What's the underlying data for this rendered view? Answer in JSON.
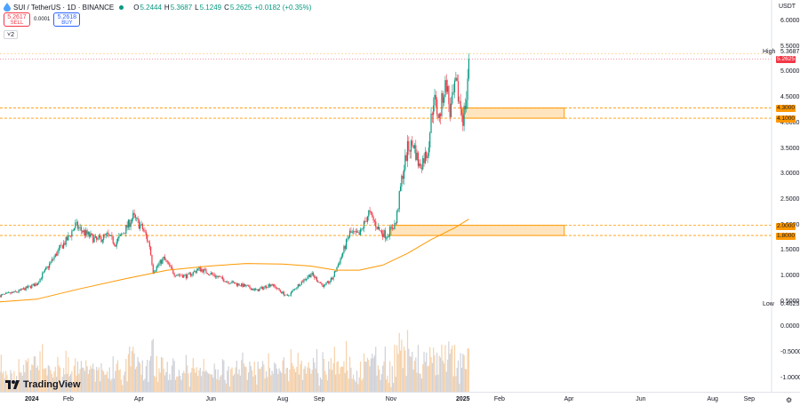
{
  "header": {
    "symbol": "SUI / TetherUS · 1D · BINANCE",
    "o_label": "O",
    "o_value": "5.2444",
    "h_label": "H",
    "h_value": "5.3687",
    "l_label": "L",
    "l_value": "5.1249",
    "c_label": "C",
    "c_value": "5.2625",
    "change": "+0.0182 (+0.35%)"
  },
  "trade": {
    "sell_price": "5.2617",
    "sell_label": "SELL",
    "spread": "0.0001",
    "buy_price": "5.2618",
    "buy_label": "BUY"
  },
  "indicator_count": "2",
  "logo_text": "TradingView",
  "currency": "USDT",
  "colors": {
    "up": "#089981",
    "down": "#f23645",
    "zone": "#ff9800",
    "volume": "#9598a1"
  },
  "chart_data": {
    "type": "candlestick",
    "symbol": "SUI/USDT",
    "interval": "1D",
    "ylim": [
      -1.2,
      6.3
    ],
    "x_range": [
      "2023-12-05",
      "2025-09-20"
    ],
    "y_ticks": [
      "6.0000",
      "5.5000",
      "5.0000",
      "4.5000",
      "4.0000",
      "3.5000",
      "3.0000",
      "2.5000",
      "2.0000",
      "1.5000",
      "1.0000",
      "0.5000",
      "0.0000",
      "-0.5000",
      "-1.0000"
    ],
    "x_ticks": [
      {
        "date": "2024-01-01",
        "label": "2024",
        "bold": true
      },
      {
        "date": "2024-02-01",
        "label": "Feb"
      },
      {
        "date": "2024-04-01",
        "label": "Apr"
      },
      {
        "date": "2024-06-01",
        "label": "Jun"
      },
      {
        "date": "2024-08-01",
        "label": "Aug"
      },
      {
        "date": "2024-09-01",
        "label": "Sep"
      },
      {
        "date": "2024-11-01",
        "label": "Nov"
      },
      {
        "date": "2025-01-01",
        "label": "2025",
        "bold": true
      },
      {
        "date": "2025-02-01",
        "label": "Feb"
      },
      {
        "date": "2025-04-01",
        "label": "Apr"
      },
      {
        "date": "2025-06-01",
        "label": "Jun"
      },
      {
        "date": "2025-08-01",
        "label": "Aug"
      },
      {
        "date": "2025-09-01",
        "label": "Sep"
      }
    ],
    "price_path": [
      [
        "2023-12-05",
        0.62
      ],
      [
        "2023-12-20",
        0.7
      ],
      [
        "2024-01-05",
        0.85
      ],
      [
        "2024-01-15",
        1.2
      ],
      [
        "2024-01-25",
        1.55
      ],
      [
        "2024-02-01",
        1.75
      ],
      [
        "2024-02-07",
        2.0
      ],
      [
        "2024-02-15",
        1.85
      ],
      [
        "2024-02-25",
        1.7
      ],
      [
        "2024-03-05",
        1.8
      ],
      [
        "2024-03-12",
        1.65
      ],
      [
        "2024-03-20",
        1.9
      ],
      [
        "2024-03-27",
        2.17
      ],
      [
        "2024-04-05",
        1.9
      ],
      [
        "2024-04-10",
        1.6
      ],
      [
        "2024-04-13",
        1.1
      ],
      [
        "2024-04-22",
        1.35
      ],
      [
        "2024-05-01",
        1.05
      ],
      [
        "2024-05-12",
        1.0
      ],
      [
        "2024-05-22",
        1.15
      ],
      [
        "2024-06-01",
        1.05
      ],
      [
        "2024-06-15",
        0.9
      ],
      [
        "2024-07-01",
        0.8
      ],
      [
        "2024-07-10",
        0.72
      ],
      [
        "2024-07-22",
        0.85
      ],
      [
        "2024-08-05",
        0.6
      ],
      [
        "2024-08-15",
        0.85
      ],
      [
        "2024-08-25",
        1.05
      ],
      [
        "2024-09-05",
        0.8
      ],
      [
        "2024-09-12",
        0.95
      ],
      [
        "2024-09-20",
        1.4
      ],
      [
        "2024-09-27",
        1.85
      ],
      [
        "2024-10-05",
        1.8
      ],
      [
        "2024-10-13",
        2.25
      ],
      [
        "2024-10-22",
        1.9
      ],
      [
        "2024-10-28",
        1.8
      ],
      [
        "2024-11-05",
        2.05
      ],
      [
        "2024-11-10",
        2.9
      ],
      [
        "2024-11-15",
        3.5
      ],
      [
        "2024-11-20",
        3.6
      ],
      [
        "2024-11-25",
        3.15
      ],
      [
        "2024-12-02",
        3.45
      ],
      [
        "2024-12-07",
        4.5
      ],
      [
        "2024-12-12",
        4.1
      ],
      [
        "2024-12-15",
        4.55
      ],
      [
        "2024-12-18",
        4.8
      ],
      [
        "2024-12-21",
        4.2
      ],
      [
        "2024-12-26",
        4.75
      ],
      [
        "2025-01-01",
        4.1
      ],
      [
        "2025-01-04",
        4.5
      ],
      [
        "2025-01-06",
        5.25
      ]
    ],
    "candle_count": 399,
    "last_close": 5.2625,
    "last_high": 5.3687,
    "session_high": 5.3687,
    "session_low": 0.4625,
    "moving_average": [
      [
        "2023-12-05",
        0.5
      ],
      [
        "2024-01-05",
        0.55
      ],
      [
        "2024-02-10",
        0.75
      ],
      [
        "2024-03-20",
        0.95
      ],
      [
        "2024-04-25",
        1.12
      ],
      [
        "2024-05-30",
        1.2
      ],
      [
        "2024-07-01",
        1.25
      ],
      [
        "2024-08-01",
        1.24
      ],
      [
        "2024-08-25",
        1.2
      ],
      [
        "2024-09-15",
        1.12
      ],
      [
        "2024-10-05",
        1.12
      ],
      [
        "2024-10-25",
        1.22
      ],
      [
        "2024-11-15",
        1.45
      ],
      [
        "2024-12-05",
        1.72
      ],
      [
        "2024-12-25",
        1.95
      ],
      [
        "2025-01-06",
        2.12
      ]
    ],
    "zones": [
      {
        "from": 4.1,
        "to": 4.3,
        "start": "2025-01-01",
        "end": "2025-03-28",
        "lower_label": "4.1000",
        "upper_label": "4.3000"
      },
      {
        "from": 1.8,
        "to": 2.0,
        "start": "2024-11-01",
        "end": "2025-03-28",
        "lower_label": "1.8000",
        "upper_label": "2.0000"
      }
    ],
    "high_label": "High",
    "high_value": "5.3687",
    "price_value": "5.2625",
    "low_label": "Low",
    "low_value": "0.4625"
  }
}
